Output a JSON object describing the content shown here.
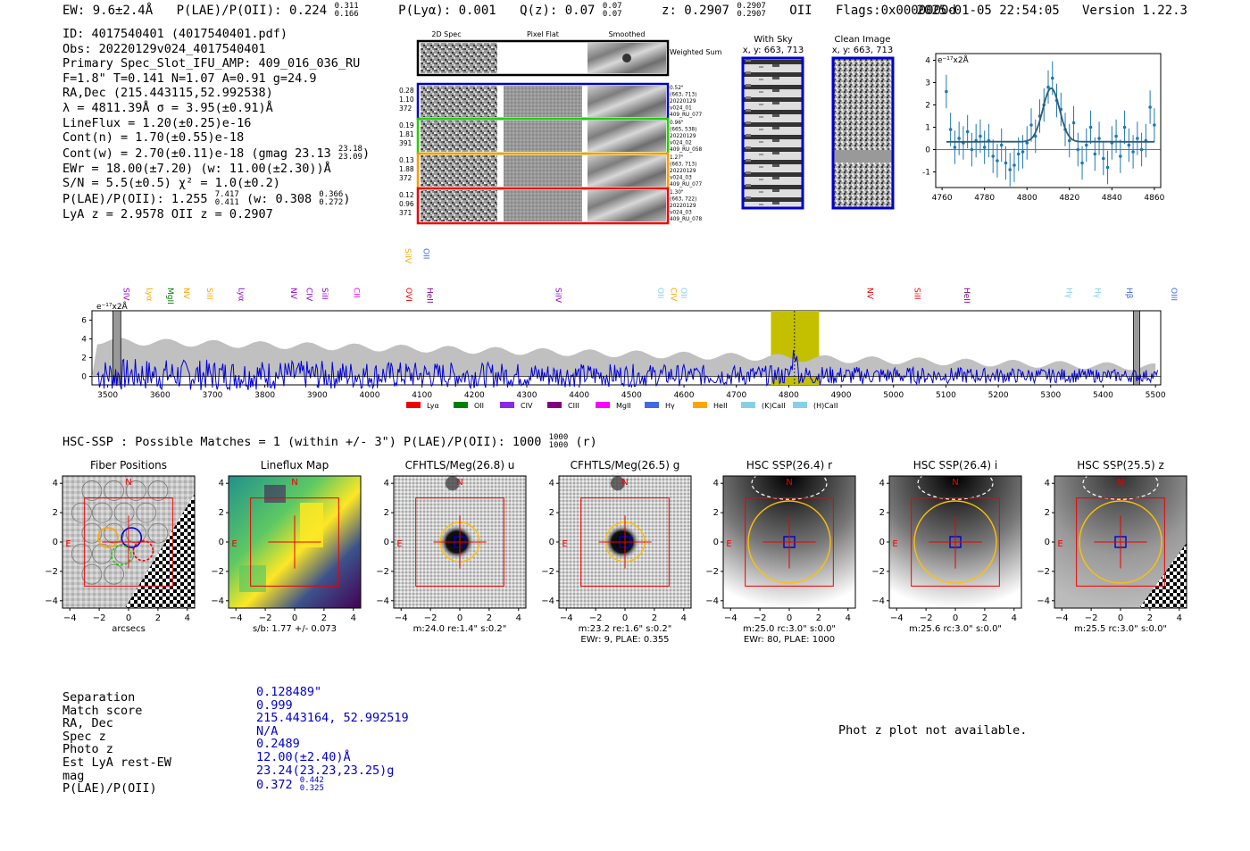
{
  "header": {
    "ew": "EW: 9.6±2.4Å",
    "plae": "P(LAE)/P(OII): 0.224",
    "plae_hi": "0.311",
    "plae_lo": "0.166",
    "plya": "P(Lyα): 0.001",
    "qz": "Q(z): 0.07",
    "qz_hi": "0.07",
    "qz_lo": "0.07",
    "z": "z: 0.2907",
    "z_hi": "0.2907",
    "z_lo": "0.2907",
    "z_line": "OII",
    "flags": "Flags:0x0000000d",
    "date": "2025-01-05 22:54:05",
    "version": "Version 1.22.3"
  },
  "info": {
    "id": "ID: 4017540401 (4017540401.pdf)",
    "obs": "Obs: 20220129v024_4017540401",
    "primary": "Primary Spec_Slot_IFU_AMP: 409_016_036_RU",
    "fiber": "F=1.8\"  T=0.141  N=1.07  A=0.91  g=24.9",
    "radec": "RA,Dec (215.443115,52.992538)",
    "lambda": "λ = 4811.39Å  σ = 3.95(±0.91)Å",
    "lineflux": "LineFlux = 1.20(±0.25)e-16",
    "contn": "Cont(n) = 1.70(±0.55)e-18",
    "contw": "Cont(w) = 2.70(±0.11)e-18 (gmag 23.13",
    "contw_hi": "23.18",
    "contw_lo": "23.09",
    "ewr": "EWr = 18.00(±7.20) (w: 11.00(±2.30))Å",
    "sn": "S/N = 5.5(±0.5)  χ² = 1.0(±0.2)",
    "plae": "P(LAE)/P(OII): 1.255",
    "plae_hi": "7.417",
    "plae_lo": "0.411",
    "plae_w": "(w: 0.308",
    "plae_w_hi": "0.366",
    "plae_w_lo": "0.272",
    "lyaz": "LyA z = 2.9578  OII z = 0.2907"
  },
  "cutouts": {
    "col_2d": "2D Spec",
    "col_flat": "Pixel Flat",
    "col_smooth": "Smoothed",
    "weighted": "Weighted Sum",
    "rows": [
      {
        "left": [
          "0.28",
          "1.10",
          "372"
        ],
        "right": [
          "0.52\"",
          "(663, 713)",
          "20220129",
          "v024_01",
          "409_RU_077"
        ],
        "color": "#0000cc"
      },
      {
        "left": [
          "0.19",
          "1.81",
          "391"
        ],
        "right": [
          "0.96\"",
          "(665, 538)",
          "20220129",
          "v024_02",
          "409_RU_058"
        ],
        "color": "#22cc00"
      },
      {
        "left": [
          "0.13",
          "1.88",
          "372"
        ],
        "right": [
          "1.27\"",
          "(663, 713)",
          "20220129",
          "v024_03",
          "409_RU_077"
        ],
        "color": "#ff9900"
      },
      {
        "left": [
          "0.12",
          "0.96",
          "371"
        ],
        "right": [
          "1.30\"",
          "(663, 722)",
          "20220129",
          "v024_03",
          "409_RU_078"
        ],
        "color": "#ee0000"
      }
    ],
    "with_sky": "With Sky",
    "clean": "Clean Image",
    "xy": "x, y: 663, 713"
  },
  "line_names": [
    "SIV",
    "Lyα",
    "MgII",
    "NV",
    "SiII",
    "Lyα",
    "NV",
    "CIV",
    "SiII",
    "CII",
    "OVI",
    "HeII",
    "SiIV",
    "OII",
    "CIV",
    "OII",
    "NV",
    "SiII",
    "HeII",
    "Hγ",
    "Hγ",
    "Hβ",
    "OIII"
  ],
  "top_labels": [
    "SiIV",
    "OII"
  ],
  "legend_items": [
    "Lyα",
    "OII",
    "CIV",
    "CIII",
    "MgII",
    "Hγ",
    "HeII",
    "(K)CaII",
    "(H)CaII"
  ],
  "legend_colors": [
    "#ee0000",
    "#008000",
    "#8a2be2",
    "#800080",
    "#ff00ff",
    "#4169e1",
    "#ffa500",
    "#87ceeb",
    "#87ceeb"
  ],
  "hsc": {
    "line": "HSC-SSP : Possible Matches = 1 (within +/- 3\")  P(LAE)/P(OII): 1000",
    "hi": "1000",
    "lo": "1000",
    "band": "(r)"
  },
  "panels": [
    {
      "title": "Fiber Positions",
      "caption": "arcsecs",
      "caption2": ""
    },
    {
      "title": "Lineflux Map",
      "caption": "s/b: 1.77 +/- 0.073",
      "caption2": ""
    },
    {
      "title": "CFHTLS/Meg(26.8) u",
      "caption": "m:24.0  re:1.4\"  s:0.2\"",
      "caption2": ""
    },
    {
      "title": "CFHTLS/Meg(26.5) g",
      "caption": "m:23.2  re:1.6\"  s:0.2\"",
      "caption2": "EWr: 9, PLAE: 0.355"
    },
    {
      "title": "HSC SSP(26.4) r",
      "caption": "m:25.0 rc:3.0\"  s:0.0\"",
      "caption2": "EWr: 80, PLAE: 1000"
    },
    {
      "title": "HSC SSP(26.4) i",
      "caption": "m:25.6 rc:3.0\"  s:0.0\"",
      "caption2": ""
    },
    {
      "title": "HSC SSP(25.5) z",
      "caption": "m:25.5 rc:3.0\"  s:0.0\"",
      "caption2": ""
    }
  ],
  "compass": {
    "n": "N",
    "e": "E"
  },
  "match": {
    "labels": [
      "Separation",
      "Match score",
      "RA, Dec",
      "Spec z",
      "Photo z",
      "Est LyA rest-EW",
      "mag",
      "P(LAE)/P(OII)"
    ],
    "values": [
      "0.128489\"",
      "0.999",
      "215.443164, 52.992519",
      "N/A",
      "0.2489",
      "12.00(±2.40)Å",
      "23.24(23.23,23.25)g",
      "0.372"
    ],
    "plae_hi": "0.442",
    "plae_lo": "0.325"
  },
  "photz_msg": "Phot z plot not available.",
  "chart_data": [
    {
      "type": "line",
      "title": "",
      "ylabel": "e⁻¹⁷x2Å",
      "xlim": [
        4757,
        4863
      ],
      "ylim": [
        -1.7,
        4.3
      ],
      "xticks": [
        4760,
        4780,
        4800,
        4820,
        4840,
        4860
      ],
      "yticks": [
        -1,
        0,
        1,
        2,
        3,
        4
      ],
      "fit": {
        "type": "gaussian",
        "center": 4811.4,
        "sigma": 3.95,
        "amplitude": 2.4,
        "baseline": 0.35
      },
      "data_x": [
        4762,
        4764,
        4766,
        4768,
        4770,
        4772,
        4774,
        4776,
        4778,
        4780,
        4782,
        4784,
        4786,
        4788,
        4790,
        4792,
        4794,
        4796,
        4798,
        4800,
        4802,
        4804,
        4806,
        4808,
        4810,
        4812,
        4814,
        4816,
        4818,
        4820,
        4822,
        4824,
        4826,
        4828,
        4830,
        4832,
        4834,
        4836,
        4838,
        4840,
        4842,
        4844,
        4846,
        4848,
        4850,
        4852,
        4854,
        4856,
        4858,
        4860
      ],
      "data_y": [
        2.6,
        0.9,
        0.1,
        0.5,
        0.3,
        0.8,
        0.0,
        0.4,
        0.6,
        0.1,
        0.4,
        -0.3,
        -0.5,
        0.2,
        -0.6,
        -0.9,
        -0.7,
        -0.2,
        -0.1,
        0.3,
        1.1,
        0.6,
        1.5,
        2.0,
        2.8,
        3.2,
        2.2,
        1.8,
        0.9,
        0.4,
        1.2,
        0.0,
        -0.6,
        0.2,
        1.0,
        -0.2,
        0.5,
        -0.4,
        -0.8,
        0.3,
        0.6,
        -0.3,
        1.0,
        0.2,
        -0.1,
        0.5,
        0.0,
        0.4,
        1.9,
        1.1
      ],
      "err": 0.75
    },
    {
      "type": "line",
      "title": "",
      "ylabel": "e⁻¹⁷x2Å",
      "xlim": [
        3470,
        5510
      ],
      "ylim": [
        -0.9,
        7
      ],
      "xticks": [
        3500,
        3600,
        3700,
        3800,
        3900,
        4000,
        4100,
        4200,
        4300,
        4400,
        4500,
        4600,
        4700,
        4800,
        4900,
        5000,
        5100,
        5200,
        5300,
        5400,
        5500
      ],
      "yticks": [
        0,
        2,
        4,
        6
      ],
      "highlight_range": [
        4766,
        4858
      ],
      "marker_x": 4811,
      "masked_ranges": [
        [
          3510,
          3525
        ],
        [
          5458,
          5470
        ]
      ],
      "line_marks_x": [
        3525,
        3570,
        3610,
        3640,
        3685,
        3745,
        3845,
        3875,
        3905,
        3965,
        4065,
        4105,
        4350,
        4545,
        4570,
        4590,
        4945,
        5035,
        5130,
        5325,
        5380,
        5440,
        5525
      ],
      "top_marks_x": [
        4063,
        4098
      ],
      "series": [
        {
          "name": "spectrum",
          "color": "#0000dd",
          "style": "noisy",
          "center": 4811,
          "peak": 2.6,
          "noise": 1.0
        },
        {
          "name": "noise-envelope",
          "color": "#c0c0c0",
          "style": "fill",
          "start": 3.8,
          "end": 1.0
        }
      ]
    }
  ]
}
